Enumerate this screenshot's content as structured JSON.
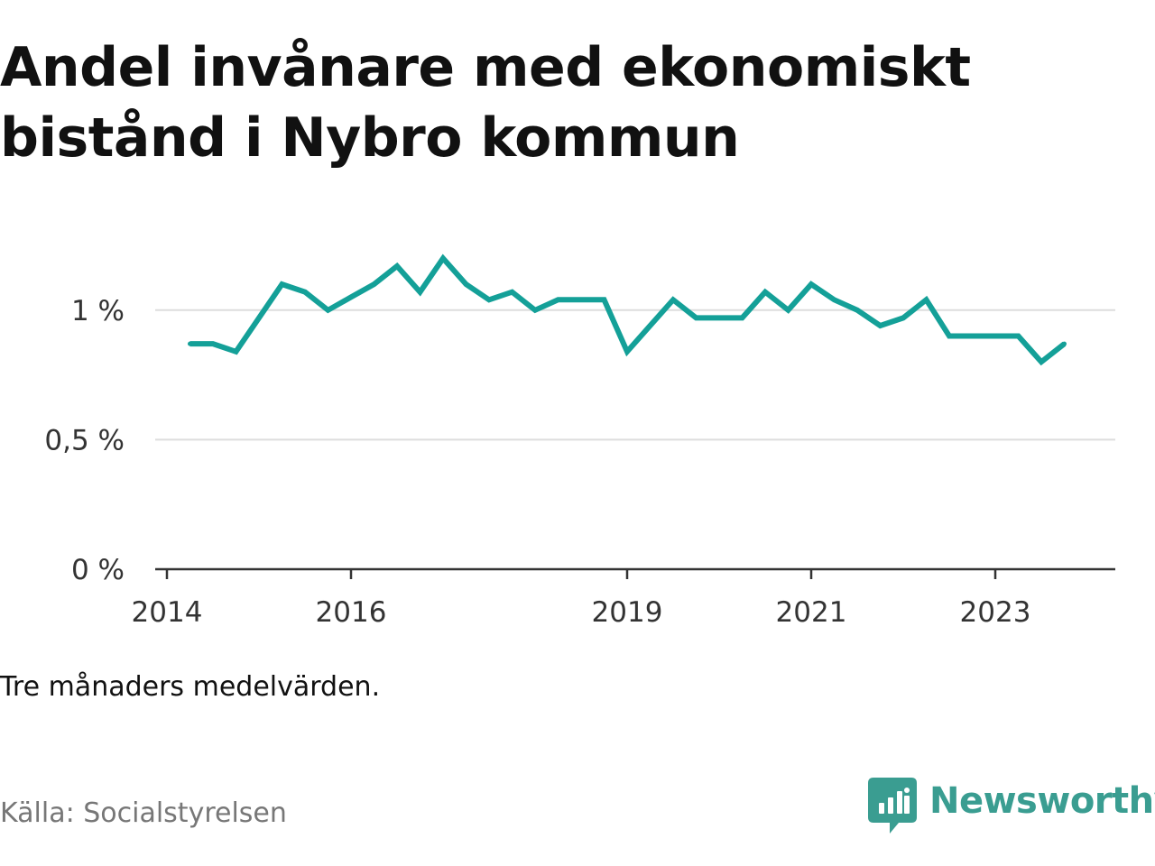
{
  "title": "Andel invånare med ekonomiskt bistånd i Nybro kommun",
  "note": "Tre månaders medelvärden.",
  "source": "Källa: Socialstyrelsen",
  "brand": {
    "name": "Newsworthy",
    "color": "#3a9d91"
  },
  "colors": {
    "line": "#14a098",
    "grid": "#dddddd",
    "axis": "#333333"
  },
  "chart_data": {
    "type": "line",
    "title": "Andel invånare med ekonomiskt bistånd i Nybro kommun",
    "xlabel": "",
    "ylabel": "",
    "x_tick_labels": [
      "2014",
      "2016",
      "2019",
      "2021",
      "2023"
    ],
    "y_tick_labels": [
      "0 %",
      "0,5 %",
      "1 %"
    ],
    "y_ticks": [
      0,
      0.5,
      1.0
    ],
    "ylim": [
      0,
      1.25
    ],
    "xlim": [
      "2014-01",
      "2024-06"
    ],
    "grid": true,
    "legend": "none",
    "series": [
      {
        "name": "",
        "x": [
          "2014-04",
          "2014-07",
          "2014-10",
          "2015-01",
          "2015-04",
          "2015-07",
          "2015-10",
          "2016-01",
          "2016-04",
          "2016-07",
          "2016-10",
          "2017-01",
          "2017-04",
          "2017-07",
          "2017-10",
          "2018-01",
          "2018-04",
          "2018-07",
          "2018-10",
          "2019-01",
          "2019-04",
          "2019-07",
          "2019-10",
          "2020-01",
          "2020-04",
          "2020-07",
          "2020-10",
          "2021-01",
          "2021-04",
          "2021-07",
          "2021-10",
          "2022-01",
          "2022-04",
          "2022-07",
          "2022-10",
          "2023-01",
          "2023-04",
          "2023-07",
          "2023-10"
        ],
        "values": [
          0.87,
          0.87,
          0.84,
          0.97,
          1.1,
          1.07,
          1.0,
          1.05,
          1.1,
          1.17,
          1.07,
          1.2,
          1.1,
          1.04,
          1.07,
          1.0,
          1.04,
          1.04,
          1.04,
          0.84,
          0.94,
          1.04,
          0.97,
          0.97,
          0.97,
          1.07,
          1.0,
          1.1,
          1.04,
          1.0,
          0.94,
          0.97,
          1.04,
          0.9,
          0.9,
          0.9,
          0.9,
          0.8,
          0.87
        ]
      }
    ]
  }
}
